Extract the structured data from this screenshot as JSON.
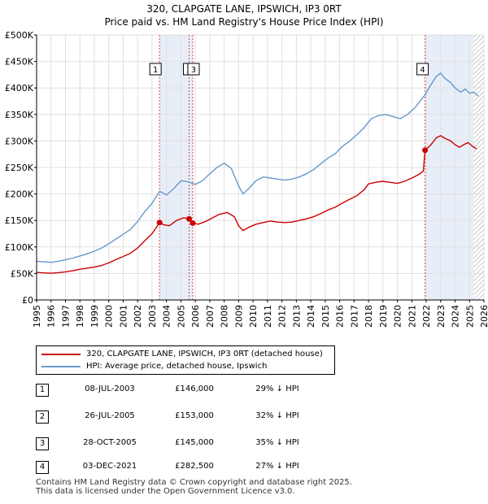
{
  "chart_data": {
    "type": "line",
    "title": "320, CLAPGATE LANE, IPSWICH, IP3 0RT",
    "subtitle": "Price paid vs. HM Land Registry's House Price Index (HPI)",
    "xlim": [
      1995,
      2026
    ],
    "ylim": [
      0,
      500000
    ],
    "x_ticks": [
      "1995",
      "1996",
      "1997",
      "1998",
      "1999",
      "2000",
      "2001",
      "2002",
      "2003",
      "2004",
      "2005",
      "2006",
      "2007",
      "2008",
      "2009",
      "2010",
      "2011",
      "2012",
      "2013",
      "2014",
      "2015",
      "2016",
      "2017",
      "2018",
      "2019",
      "2020",
      "2021",
      "2022",
      "2023",
      "2024",
      "2025",
      "2026"
    ],
    "y_ticks": [
      {
        "value": 0,
        "label": "£0"
      },
      {
        "value": 50000,
        "label": "£50K"
      },
      {
        "value": 100000,
        "label": "£100K"
      },
      {
        "value": 150000,
        "label": "£150K"
      },
      {
        "value": 200000,
        "label": "£200K"
      },
      {
        "value": 250000,
        "label": "£250K"
      },
      {
        "value": 300000,
        "label": "£300K"
      },
      {
        "value": 350000,
        "label": "£350K"
      },
      {
        "value": 400000,
        "label": "£400K"
      },
      {
        "value": 450000,
        "label": "£450K"
      },
      {
        "value": 500000,
        "label": "£500K"
      }
    ],
    "shaded_ranges": [
      [
        2003.52,
        2005.82
      ],
      [
        2021.92,
        2025.3
      ]
    ],
    "hatched_from": 2025.3,
    "series": [
      {
        "name": "320, CLAPGATE LANE, IPSWICH, IP3 0RT (detached house)",
        "color": "#cc0000",
        "points": [
          [
            1995.0,
            52000
          ],
          [
            1995.5,
            51000
          ],
          [
            1996.0,
            50500
          ],
          [
            1996.5,
            51500
          ],
          [
            1997.0,
            53000
          ],
          [
            1997.5,
            55000
          ],
          [
            1998.0,
            58000
          ],
          [
            1998.5,
            60000
          ],
          [
            1999.0,
            62000
          ],
          [
            1999.5,
            65000
          ],
          [
            2000.0,
            70000
          ],
          [
            2000.5,
            76000
          ],
          [
            2001.0,
            82000
          ],
          [
            2001.5,
            88000
          ],
          [
            2002.0,
            98000
          ],
          [
            2002.5,
            112000
          ],
          [
            2003.0,
            125000
          ],
          [
            2003.52,
            146000
          ],
          [
            2003.8,
            142000
          ],
          [
            2004.2,
            140000
          ],
          [
            2004.7,
            150000
          ],
          [
            2005.2,
            155000
          ],
          [
            2005.57,
            153000
          ],
          [
            2005.82,
            145000
          ],
          [
            2006.2,
            143000
          ],
          [
            2006.7,
            148000
          ],
          [
            2007.2,
            155000
          ],
          [
            2007.7,
            162000
          ],
          [
            2008.2,
            165000
          ],
          [
            2008.7,
            157000
          ],
          [
            2009.0,
            140000
          ],
          [
            2009.3,
            131000
          ],
          [
            2009.7,
            137000
          ],
          [
            2010.2,
            143000
          ],
          [
            2010.7,
            146000
          ],
          [
            2011.2,
            149000
          ],
          [
            2011.7,
            147000
          ],
          [
            2012.2,
            146000
          ],
          [
            2012.7,
            147000
          ],
          [
            2013.2,
            150000
          ],
          [
            2013.7,
            153000
          ],
          [
            2014.2,
            157000
          ],
          [
            2014.7,
            163000
          ],
          [
            2015.2,
            170000
          ],
          [
            2015.7,
            175000
          ],
          [
            2016.2,
            183000
          ],
          [
            2016.7,
            190000
          ],
          [
            2017.2,
            197000
          ],
          [
            2017.7,
            208000
          ],
          [
            2018.0,
            219000
          ],
          [
            2018.5,
            222000
          ],
          [
            2019.0,
            224000
          ],
          [
            2019.5,
            222000
          ],
          [
            2020.0,
            220000
          ],
          [
            2020.5,
            224000
          ],
          [
            2021.0,
            230000
          ],
          [
            2021.5,
            237000
          ],
          [
            2021.8,
            243000
          ],
          [
            2021.92,
            282500
          ],
          [
            2022.3,
            292000
          ],
          [
            2022.7,
            306000
          ],
          [
            2023.0,
            310000
          ],
          [
            2023.3,
            305000
          ],
          [
            2023.7,
            300000
          ],
          [
            2024.0,
            293000
          ],
          [
            2024.3,
            288000
          ],
          [
            2024.6,
            293000
          ],
          [
            2024.9,
            297000
          ],
          [
            2025.2,
            290000
          ],
          [
            2025.5,
            285000
          ]
        ]
      },
      {
        "name": "HPI: Average price, detached house, Ipswich",
        "color": "#6699cc",
        "points": [
          [
            1995.0,
            73000
          ],
          [
            1995.5,
            72000
          ],
          [
            1996.0,
            71000
          ],
          [
            1996.5,
            73000
          ],
          [
            1997.0,
            76000
          ],
          [
            1997.5,
            79000
          ],
          [
            1998.0,
            83000
          ],
          [
            1998.5,
            87000
          ],
          [
            1999.0,
            92000
          ],
          [
            1999.5,
            98000
          ],
          [
            2000.0,
            106000
          ],
          [
            2000.5,
            115000
          ],
          [
            2001.0,
            124000
          ],
          [
            2001.5,
            133000
          ],
          [
            2002.0,
            148000
          ],
          [
            2002.5,
            167000
          ],
          [
            2003.0,
            182000
          ],
          [
            2003.52,
            205000
          ],
          [
            2004.0,
            198000
          ],
          [
            2004.5,
            210000
          ],
          [
            2005.0,
            225000
          ],
          [
            2005.5,
            223000
          ],
          [
            2006.0,
            218000
          ],
          [
            2006.5,
            225000
          ],
          [
            2007.0,
            238000
          ],
          [
            2007.5,
            250000
          ],
          [
            2008.0,
            258000
          ],
          [
            2008.5,
            248000
          ],
          [
            2009.0,
            215000
          ],
          [
            2009.3,
            200000
          ],
          [
            2009.7,
            210000
          ],
          [
            2010.2,
            225000
          ],
          [
            2010.7,
            232000
          ],
          [
            2011.2,
            230000
          ],
          [
            2011.7,
            228000
          ],
          [
            2012.2,
            226000
          ],
          [
            2012.7,
            228000
          ],
          [
            2013.2,
            232000
          ],
          [
            2013.7,
            238000
          ],
          [
            2014.2,
            246000
          ],
          [
            2014.7,
            257000
          ],
          [
            2015.2,
            268000
          ],
          [
            2015.7,
            276000
          ],
          [
            2016.2,
            290000
          ],
          [
            2016.7,
            300000
          ],
          [
            2017.2,
            312000
          ],
          [
            2017.7,
            325000
          ],
          [
            2018.2,
            342000
          ],
          [
            2018.7,
            348000
          ],
          [
            2019.2,
            350000
          ],
          [
            2019.7,
            346000
          ],
          [
            2020.2,
            342000
          ],
          [
            2020.7,
            350000
          ],
          [
            2021.2,
            362000
          ],
          [
            2021.6,
            376000
          ],
          [
            2021.92,
            387000
          ],
          [
            2022.3,
            405000
          ],
          [
            2022.7,
            422000
          ],
          [
            2023.0,
            428000
          ],
          [
            2023.3,
            418000
          ],
          [
            2023.7,
            410000
          ],
          [
            2024.0,
            400000
          ],
          [
            2024.4,
            392000
          ],
          [
            2024.7,
            398000
          ],
          [
            2025.0,
            390000
          ],
          [
            2025.3,
            392000
          ],
          [
            2025.6,
            385000
          ]
        ]
      }
    ],
    "markers": [
      {
        "label": "1",
        "x": 2003.52,
        "y": 146000
      },
      {
        "label": "2",
        "x": 2005.57,
        "y": 153000
      },
      {
        "label": "3",
        "x": 2005.82,
        "y": 145000
      },
      {
        "label": "4",
        "x": 2021.92,
        "y": 282500
      }
    ]
  },
  "legend": {
    "items": [
      {
        "label": "320, CLAPGATE LANE, IPSWICH, IP3 0RT (detached house)",
        "color": "#cc0000"
      },
      {
        "label": "HPI: Average price, detached house, Ipswich",
        "color": "#6699cc"
      }
    ]
  },
  "sales": [
    {
      "num": "1",
      "date": "08-JUL-2003",
      "price": "£146,000",
      "hpi": "29% ↓ HPI"
    },
    {
      "num": "2",
      "date": "26-JUL-2005",
      "price": "£153,000",
      "hpi": "32% ↓ HPI"
    },
    {
      "num": "3",
      "date": "28-OCT-2005",
      "price": "£145,000",
      "hpi": "35% ↓ HPI"
    },
    {
      "num": "4",
      "date": "03-DEC-2021",
      "price": "£282,500",
      "hpi": "27% ↓ HPI"
    }
  ],
  "footer": {
    "line1": "Contains HM Land Registry data © Crown copyright and database right 2025.",
    "line2": "This data is licensed under the Open Government Licence v3.0."
  }
}
